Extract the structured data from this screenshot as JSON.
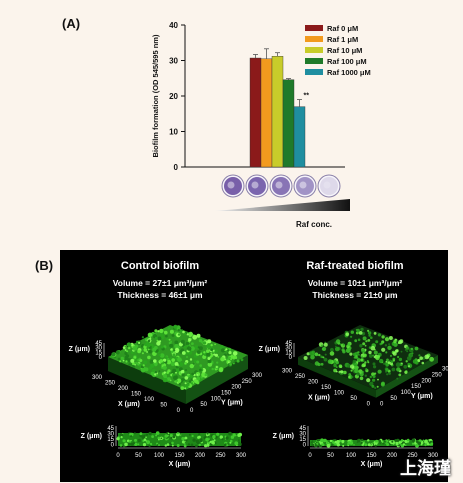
{
  "panel_a_label": "(A)",
  "panel_b_label": "(B)",
  "chart_data": {
    "type": "bar",
    "ylabel": "Biofilm formation (OD 545/595 nm)",
    "ylim": [
      0,
      40
    ],
    "yticks": [
      0,
      10,
      20,
      30,
      40
    ],
    "series": [
      {
        "name": "Raf 0 μM",
        "value": 30.7,
        "error": 1.0,
        "color": "#8b1a1a"
      },
      {
        "name": "Raf 1 μM",
        "value": 30.5,
        "error": 2.8,
        "color": "#f29a1e"
      },
      {
        "name": "Raf 10 μM",
        "value": 31.2,
        "error": 1.0,
        "color": "#c8cc2a"
      },
      {
        "name": "Raf 100 μM",
        "value": 24.6,
        "error": 0.3,
        "color": "#1f7a2a"
      },
      {
        "name": "Raf 1000 μM",
        "value": 17.0,
        "error": 2.0,
        "color": "#1f8ea0"
      }
    ],
    "annotation": "**",
    "gradient_label": "Raf conc."
  },
  "panel_b": {
    "control": {
      "title": "Control biofilm",
      "volume": "Volume = 27±1 μm³/μm²",
      "thickness": "Thickness = 46±1 μm"
    },
    "treated": {
      "title": "Raf-treated biofilm",
      "volume": "Volume = 10±1 μm³/μm²",
      "thickness": "Thickness = 21±0 μm"
    },
    "z_label": "Z (μm)",
    "x_label": "X (μm)",
    "y_label": "Y (μm)",
    "z_ticks": [
      "45",
      "30",
      "15",
      "0"
    ],
    "x_ticks": [
      "0",
      "50",
      "100",
      "150",
      "200",
      "250",
      "300"
    ],
    "xy_ticks_3d": [
      "0",
      "50",
      "100",
      "150",
      "200",
      "250",
      "300"
    ]
  },
  "watermark": "上海瑾"
}
